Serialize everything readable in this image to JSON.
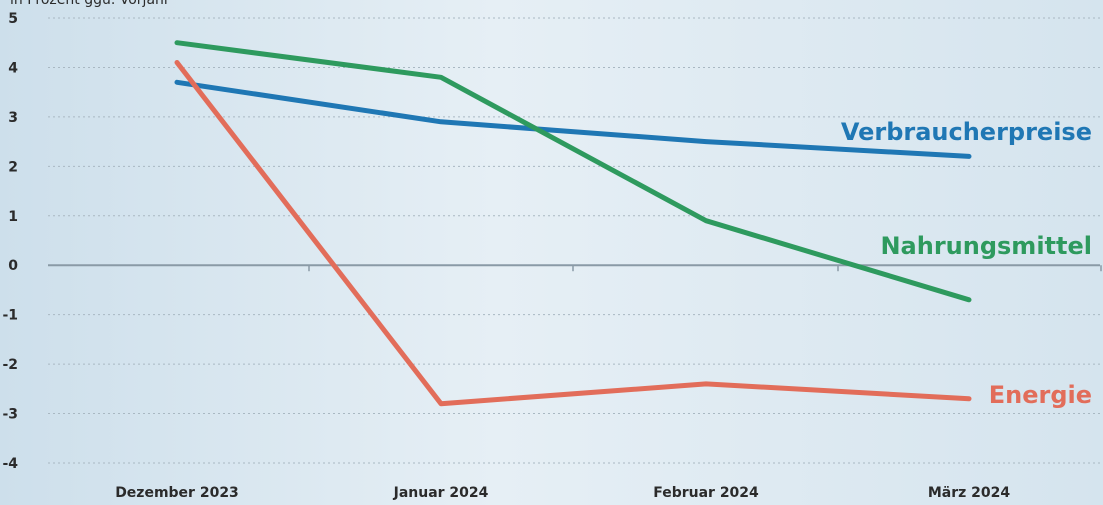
{
  "chart_data": {
    "type": "line",
    "unit_label": "in Prozent ggü. Vorjahr",
    "categories": [
      "Dezember 2023",
      "Januar 2024",
      "Februar 2024",
      "März 2024"
    ],
    "yticks": [
      5,
      4,
      3,
      2,
      1,
      0,
      -1,
      -2,
      -3,
      -4
    ],
    "ylim": [
      -4,
      5
    ],
    "grid": true,
    "series": [
      {
        "name": "Verbraucherpreise",
        "color": "#1f77b4",
        "values": [
          3.7,
          2.9,
          2.5,
          2.2
        ]
      },
      {
        "name": "Nahrungsmittel",
        "color": "#2e9a5e",
        "values": [
          4.5,
          3.8,
          0.9,
          -0.7
        ]
      },
      {
        "name": "Energie",
        "color": "#e26d5a",
        "values": [
          4.1,
          -2.8,
          -2.4,
          -2.7
        ]
      }
    ]
  }
}
